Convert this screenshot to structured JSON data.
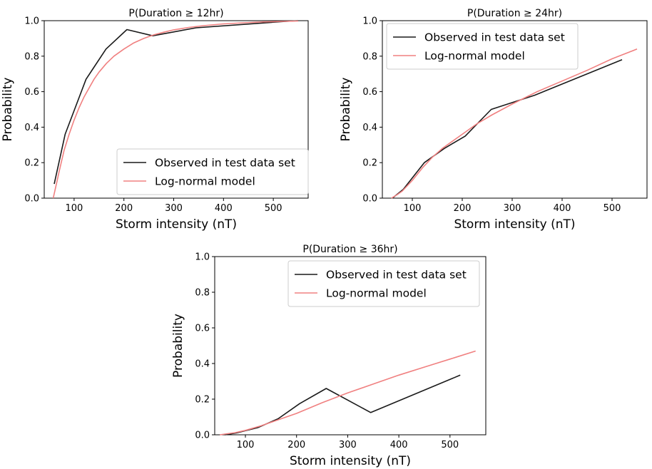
{
  "chart_data": [
    {
      "type": "line",
      "title": "P(Duration ≥ 12hr)",
      "xlabel": "Storm intensity (nT)",
      "ylabel": "Probability",
      "xlim": [
        40,
        570
      ],
      "ylim": [
        0,
        1.0
      ],
      "xticks": [
        "100",
        "200",
        "300",
        "400",
        "500"
      ],
      "yticks": [
        "0.0",
        "0.2",
        "0.4",
        "0.6",
        "0.8",
        "1.0"
      ],
      "legend_position": "lower-right",
      "series": [
        {
          "name": "Observed in test data set",
          "color": "#1a1a1a",
          "x": [
            60,
            82,
            124,
            164,
            206,
            258,
            345,
            520,
            550
          ],
          "y": [
            0.08,
            0.36,
            0.67,
            0.84,
            0.95,
            0.915,
            0.96,
            0.995,
            1.0
          ]
        },
        {
          "name": "Log-normal model",
          "color": "#f08080",
          "x": [
            58,
            62,
            66,
            70,
            75,
            80,
            90,
            100,
            110,
            120,
            130,
            140,
            150,
            165,
            180,
            200,
            220,
            240,
            260,
            280,
            300,
            330,
            360,
            400,
            440,
            480,
            520,
            550
          ],
          "y": [
            0.0,
            0.05,
            0.1,
            0.15,
            0.21,
            0.27,
            0.36,
            0.44,
            0.51,
            0.57,
            0.62,
            0.67,
            0.71,
            0.76,
            0.8,
            0.84,
            0.875,
            0.9,
            0.92,
            0.935,
            0.948,
            0.962,
            0.972,
            0.982,
            0.988,
            0.993,
            0.996,
            0.998
          ]
        }
      ]
    },
    {
      "type": "line",
      "title": "P(Duration ≥ 24hr)",
      "xlabel": "Storm intensity (nT)",
      "ylabel": "Probability",
      "xlim": [
        40,
        570
      ],
      "ylim": [
        0,
        1.0
      ],
      "xticks": [
        "100",
        "200",
        "300",
        "400",
        "500"
      ],
      "yticks": [
        "0.0",
        "0.2",
        "0.4",
        "0.6",
        "0.8",
        "1.0"
      ],
      "legend_position": "upper-left",
      "series": [
        {
          "name": "Observed in test data set",
          "color": "#1a1a1a",
          "x": [
            60,
            82,
            124,
            164,
            206,
            258,
            345,
            520
          ],
          "y": [
            0.0,
            0.05,
            0.2,
            0.28,
            0.35,
            0.5,
            0.58,
            0.78
          ]
        },
        {
          "name": "Log-normal model",
          "color": "#f08080",
          "x": [
            58,
            70,
            80,
            100,
            120,
            140,
            160,
            180,
            200,
            230,
            260,
            300,
            350,
            400,
            450,
            500,
            550
          ],
          "y": [
            0.0,
            0.02,
            0.04,
            0.1,
            0.17,
            0.23,
            0.28,
            0.32,
            0.36,
            0.42,
            0.47,
            0.53,
            0.6,
            0.66,
            0.72,
            0.785,
            0.84
          ]
        }
      ]
    },
    {
      "type": "line",
      "title": "P(Duration ≥ 36hr)",
      "xlabel": "Storm intensity (nT)",
      "ylabel": "Probability",
      "xlim": [
        40,
        570
      ],
      "ylim": [
        0,
        1.0
      ],
      "xticks": [
        "100",
        "200",
        "300",
        "400",
        "500"
      ],
      "yticks": [
        "0.0",
        "0.2",
        "0.4",
        "0.6",
        "0.8",
        "1.0"
      ],
      "legend_position": "upper-right",
      "series": [
        {
          "name": "Observed in test data set",
          "color": "#1a1a1a",
          "x": [
            60,
            82,
            124,
            164,
            206,
            258,
            345,
            520
          ],
          "y": [
            0.0,
            0.01,
            0.04,
            0.09,
            0.175,
            0.26,
            0.125,
            0.335
          ]
        },
        {
          "name": "Log-normal model",
          "color": "#f08080",
          "x": [
            50,
            80,
            100,
            130,
            160,
            200,
            250,
            300,
            350,
            400,
            450,
            500,
            550
          ],
          "y": [
            0.0,
            0.012,
            0.025,
            0.05,
            0.08,
            0.12,
            0.18,
            0.235,
            0.285,
            0.335,
            0.38,
            0.425,
            0.47
          ]
        }
      ]
    }
  ]
}
